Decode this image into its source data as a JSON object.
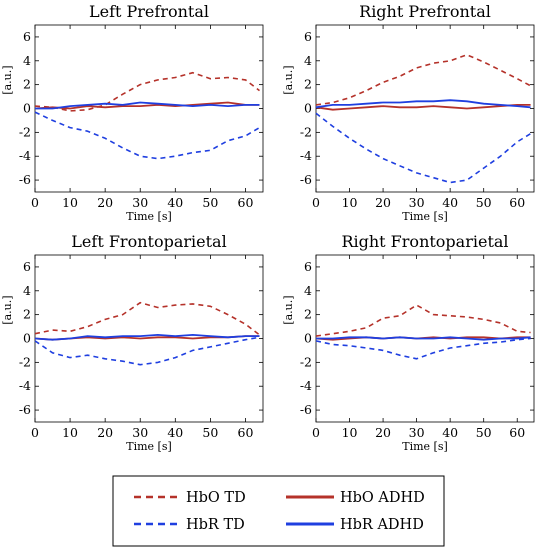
{
  "chart_data": [
    {
      "type": "line",
      "title": "Left Prefrontal",
      "xlabel": "Time [s]",
      "ylabel": "[a.u.]",
      "xlim": [
        0,
        65
      ],
      "ylim": [
        -7,
        7
      ],
      "xticks": [
        0,
        10,
        20,
        30,
        40,
        50,
        60
      ],
      "yticks": [
        -6,
        -4,
        -2,
        0,
        2,
        4,
        6
      ],
      "x": [
        0,
        5,
        10,
        15,
        20,
        25,
        30,
        35,
        40,
        45,
        50,
        55,
        60,
        64
      ],
      "series": [
        {
          "name": "HbO TD",
          "values": [
            0.2,
            0.1,
            -0.2,
            -0.1,
            0.3,
            1.2,
            2.0,
            2.4,
            2.6,
            3.0,
            2.5,
            2.6,
            2.4,
            1.5
          ]
        },
        {
          "name": "HbR TD",
          "values": [
            -0.3,
            -1.0,
            -1.6,
            -1.9,
            -2.5,
            -3.3,
            -4.0,
            -4.2,
            -4.0,
            -3.7,
            -3.5,
            -2.7,
            -2.3,
            -1.6
          ]
        },
        {
          "name": "HbO ADHD",
          "values": [
            0.0,
            0.1,
            0.0,
            0.2,
            0.1,
            0.2,
            0.2,
            0.3,
            0.2,
            0.3,
            0.4,
            0.5,
            0.3,
            0.3
          ]
        },
        {
          "name": "HbR ADHD",
          "values": [
            0.0,
            0.0,
            0.2,
            0.3,
            0.4,
            0.3,
            0.5,
            0.4,
            0.3,
            0.2,
            0.3,
            0.2,
            0.3,
            0.3
          ]
        }
      ]
    },
    {
      "type": "line",
      "title": "Right Prefrontal",
      "xlabel": "Time [s]",
      "ylabel": "[a.u.]",
      "xlim": [
        0,
        65
      ],
      "ylim": [
        -7,
        7
      ],
      "xticks": [
        0,
        10,
        20,
        30,
        40,
        50,
        60
      ],
      "yticks": [
        -6,
        -4,
        -2,
        0,
        2,
        4,
        6
      ],
      "x": [
        0,
        5,
        10,
        15,
        20,
        25,
        30,
        35,
        40,
        45,
        50,
        55,
        60,
        64
      ],
      "series": [
        {
          "name": "HbO TD",
          "values": [
            0.3,
            0.5,
            0.9,
            1.5,
            2.2,
            2.7,
            3.4,
            3.8,
            4.0,
            4.5,
            3.9,
            3.2,
            2.5,
            1.9
          ]
        },
        {
          "name": "HbR TD",
          "values": [
            -0.4,
            -1.5,
            -2.5,
            -3.4,
            -4.2,
            -4.8,
            -5.4,
            -5.8,
            -6.2,
            -6.0,
            -5.0,
            -4.0,
            -2.8,
            -2.1
          ]
        },
        {
          "name": "HbO ADHD",
          "values": [
            0.1,
            -0.1,
            0.0,
            0.1,
            0.2,
            0.1,
            0.1,
            0.2,
            0.1,
            0.0,
            0.1,
            0.2,
            0.3,
            0.3
          ]
        },
        {
          "name": "HbR ADHD",
          "values": [
            0.1,
            0.3,
            0.3,
            0.4,
            0.5,
            0.5,
            0.6,
            0.6,
            0.7,
            0.6,
            0.4,
            0.3,
            0.2,
            0.1
          ]
        }
      ]
    },
    {
      "type": "line",
      "title": "Left Frontoparietal",
      "xlabel": "Time [s]",
      "ylabel": "[a.u.]",
      "xlim": [
        0,
        65
      ],
      "ylim": [
        -7,
        7
      ],
      "xticks": [
        0,
        10,
        20,
        30,
        40,
        50,
        60
      ],
      "yticks": [
        -6,
        -4,
        -2,
        0,
        2,
        4,
        6
      ],
      "x": [
        0,
        5,
        10,
        15,
        20,
        25,
        30,
        35,
        40,
        45,
        50,
        55,
        60,
        64
      ],
      "series": [
        {
          "name": "HbO TD",
          "values": [
            0.4,
            0.7,
            0.6,
            1.0,
            1.6,
            2.0,
            3.0,
            2.6,
            2.8,
            2.9,
            2.7,
            2.0,
            1.2,
            0.3
          ]
        },
        {
          "name": "HbR TD",
          "values": [
            -0.2,
            -1.2,
            -1.6,
            -1.4,
            -1.7,
            -1.9,
            -2.2,
            -2.0,
            -1.6,
            -1.0,
            -0.7,
            -0.4,
            -0.1,
            0.1
          ]
        },
        {
          "name": "HbO ADHD",
          "values": [
            0.0,
            -0.1,
            0.0,
            0.1,
            0.0,
            0.1,
            0.0,
            0.1,
            0.1,
            0.0,
            0.1,
            0.1,
            0.2,
            0.2
          ]
        },
        {
          "name": "HbR ADHD",
          "values": [
            0.0,
            -0.1,
            0.0,
            0.2,
            0.1,
            0.2,
            0.2,
            0.3,
            0.2,
            0.3,
            0.2,
            0.1,
            0.2,
            0.2
          ]
        }
      ]
    },
    {
      "type": "line",
      "title": "Right Frontoparietal",
      "xlabel": "Time [s]",
      "ylabel": "[a.u.]",
      "xlim": [
        0,
        65
      ],
      "ylim": [
        -7,
        7
      ],
      "xticks": [
        0,
        10,
        20,
        30,
        40,
        50,
        60
      ],
      "yticks": [
        -6,
        -4,
        -2,
        0,
        2,
        4,
        6
      ],
      "x": [
        0,
        5,
        10,
        15,
        20,
        25,
        30,
        35,
        40,
        45,
        50,
        55,
        60,
        64
      ],
      "series": [
        {
          "name": "HbO TD",
          "values": [
            0.2,
            0.4,
            0.6,
            0.9,
            1.7,
            1.9,
            2.8,
            2.0,
            1.9,
            1.8,
            1.6,
            1.3,
            0.6,
            0.5
          ]
        },
        {
          "name": "HbR TD",
          "values": [
            -0.2,
            -0.5,
            -0.6,
            -0.8,
            -1.0,
            -1.4,
            -1.7,
            -1.2,
            -0.8,
            -0.6,
            -0.4,
            -0.3,
            -0.1,
            0.0
          ]
        },
        {
          "name": "HbO ADHD",
          "values": [
            0.0,
            -0.1,
            0.0,
            0.1,
            0.0,
            0.1,
            0.0,
            0.1,
            0.0,
            0.1,
            0.1,
            0.0,
            0.1,
            0.1
          ]
        },
        {
          "name": "HbR ADHD",
          "values": [
            0.0,
            0.0,
            0.1,
            0.1,
            0.0,
            0.1,
            0.0,
            0.0,
            0.1,
            0.0,
            -0.1,
            0.0,
            0.0,
            0.1
          ]
        }
      ]
    }
  ],
  "legend": {
    "placement": "bottom",
    "items": [
      {
        "label": "HbO TD",
        "color": "#b5322a",
        "style": "dashed"
      },
      {
        "label": "HbO ADHD",
        "color": "#b5322a",
        "style": "solid"
      },
      {
        "label": "HbR TD",
        "color": "#1f3fe0",
        "style": "dashed"
      },
      {
        "label": "HbR ADHD",
        "color": "#1f3fe0",
        "style": "solid"
      }
    ]
  },
  "colors": {
    "hbo": "#b5322a",
    "hbr": "#1f3fe0"
  }
}
